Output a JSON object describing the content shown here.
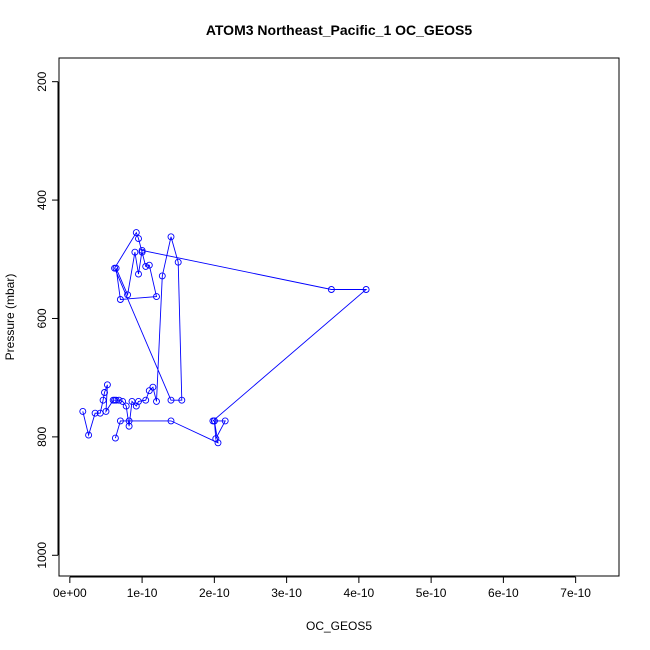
{
  "chart_data": {
    "type": "line",
    "title": "ATOM3 Northeast_Pacific_1 OC_GEOS5",
    "xlabel": "OC_GEOS5",
    "ylabel": "Pressure (mbar)",
    "xlim": [
      -1.5e-11,
      7.6e-10
    ],
    "ylim": [
      1035,
      160
    ],
    "y_reversed": true,
    "x_ticks": [
      0,
      1e-10,
      2e-10,
      3e-10,
      4e-10,
      5e-10,
      6e-10,
      7e-10
    ],
    "x_tick_labels": [
      "0e+00",
      "1e-10",
      "2e-10",
      "3e-10",
      "4e-10",
      "5e-10",
      "6e-10",
      "7e-10"
    ],
    "y_ticks": [
      200,
      400,
      600,
      800,
      1000
    ],
    "y_tick_labels": [
      "200",
      "400",
      "600",
      "800",
      "1000"
    ],
    "series_color": "#0000ff",
    "markers": "open-circle",
    "grid": false,
    "series": [
      {
        "x": [
          1.8e-11,
          2.6e-11,
          3.5e-11,
          4.2e-11,
          4.6e-11,
          4.8e-11,
          5.2e-11,
          5e-11,
          6e-11,
          6.2e-11,
          6.4e-11,
          6.8e-11,
          7.3e-11,
          7.8e-11,
          8.2e-11,
          8.6e-11,
          9.2e-11,
          9.5e-11,
          1.05e-10,
          1.1e-10,
          1.15e-10,
          1.2e-10,
          1.28e-10,
          1.4e-10,
          1.5e-10,
          1.55e-10,
          1.4e-10,
          6.2e-11,
          9.2e-11,
          9.5e-11,
          1e-10,
          1.05e-10,
          1.1e-10,
          1.2e-10,
          7e-11,
          6.4e-11,
          8e-11,
          9e-11,
          9.5e-11,
          1e-10,
          3.62e-10,
          4.1e-10,
          1.98e-10,
          2e-10,
          2.02e-10,
          2.15e-10,
          2e-10,
          2.05e-10,
          1.4e-10,
          8.2e-11,
          7e-11,
          6.3e-11
        ],
        "y": [
          757,
          797,
          760,
          760,
          738,
          725,
          712,
          757,
          738,
          738,
          738,
          738,
          740,
          748,
          782,
          740,
          748,
          740,
          738,
          722,
          716,
          740,
          528,
          462,
          505,
          738,
          738,
          515,
          455,
          465,
          488,
          512,
          510,
          563,
          568,
          515,
          560,
          488,
          525,
          485,
          551,
          551,
          773,
          773,
          803,
          773,
          773,
          810,
          773,
          773,
          773,
          802
        ]
      }
    ]
  }
}
